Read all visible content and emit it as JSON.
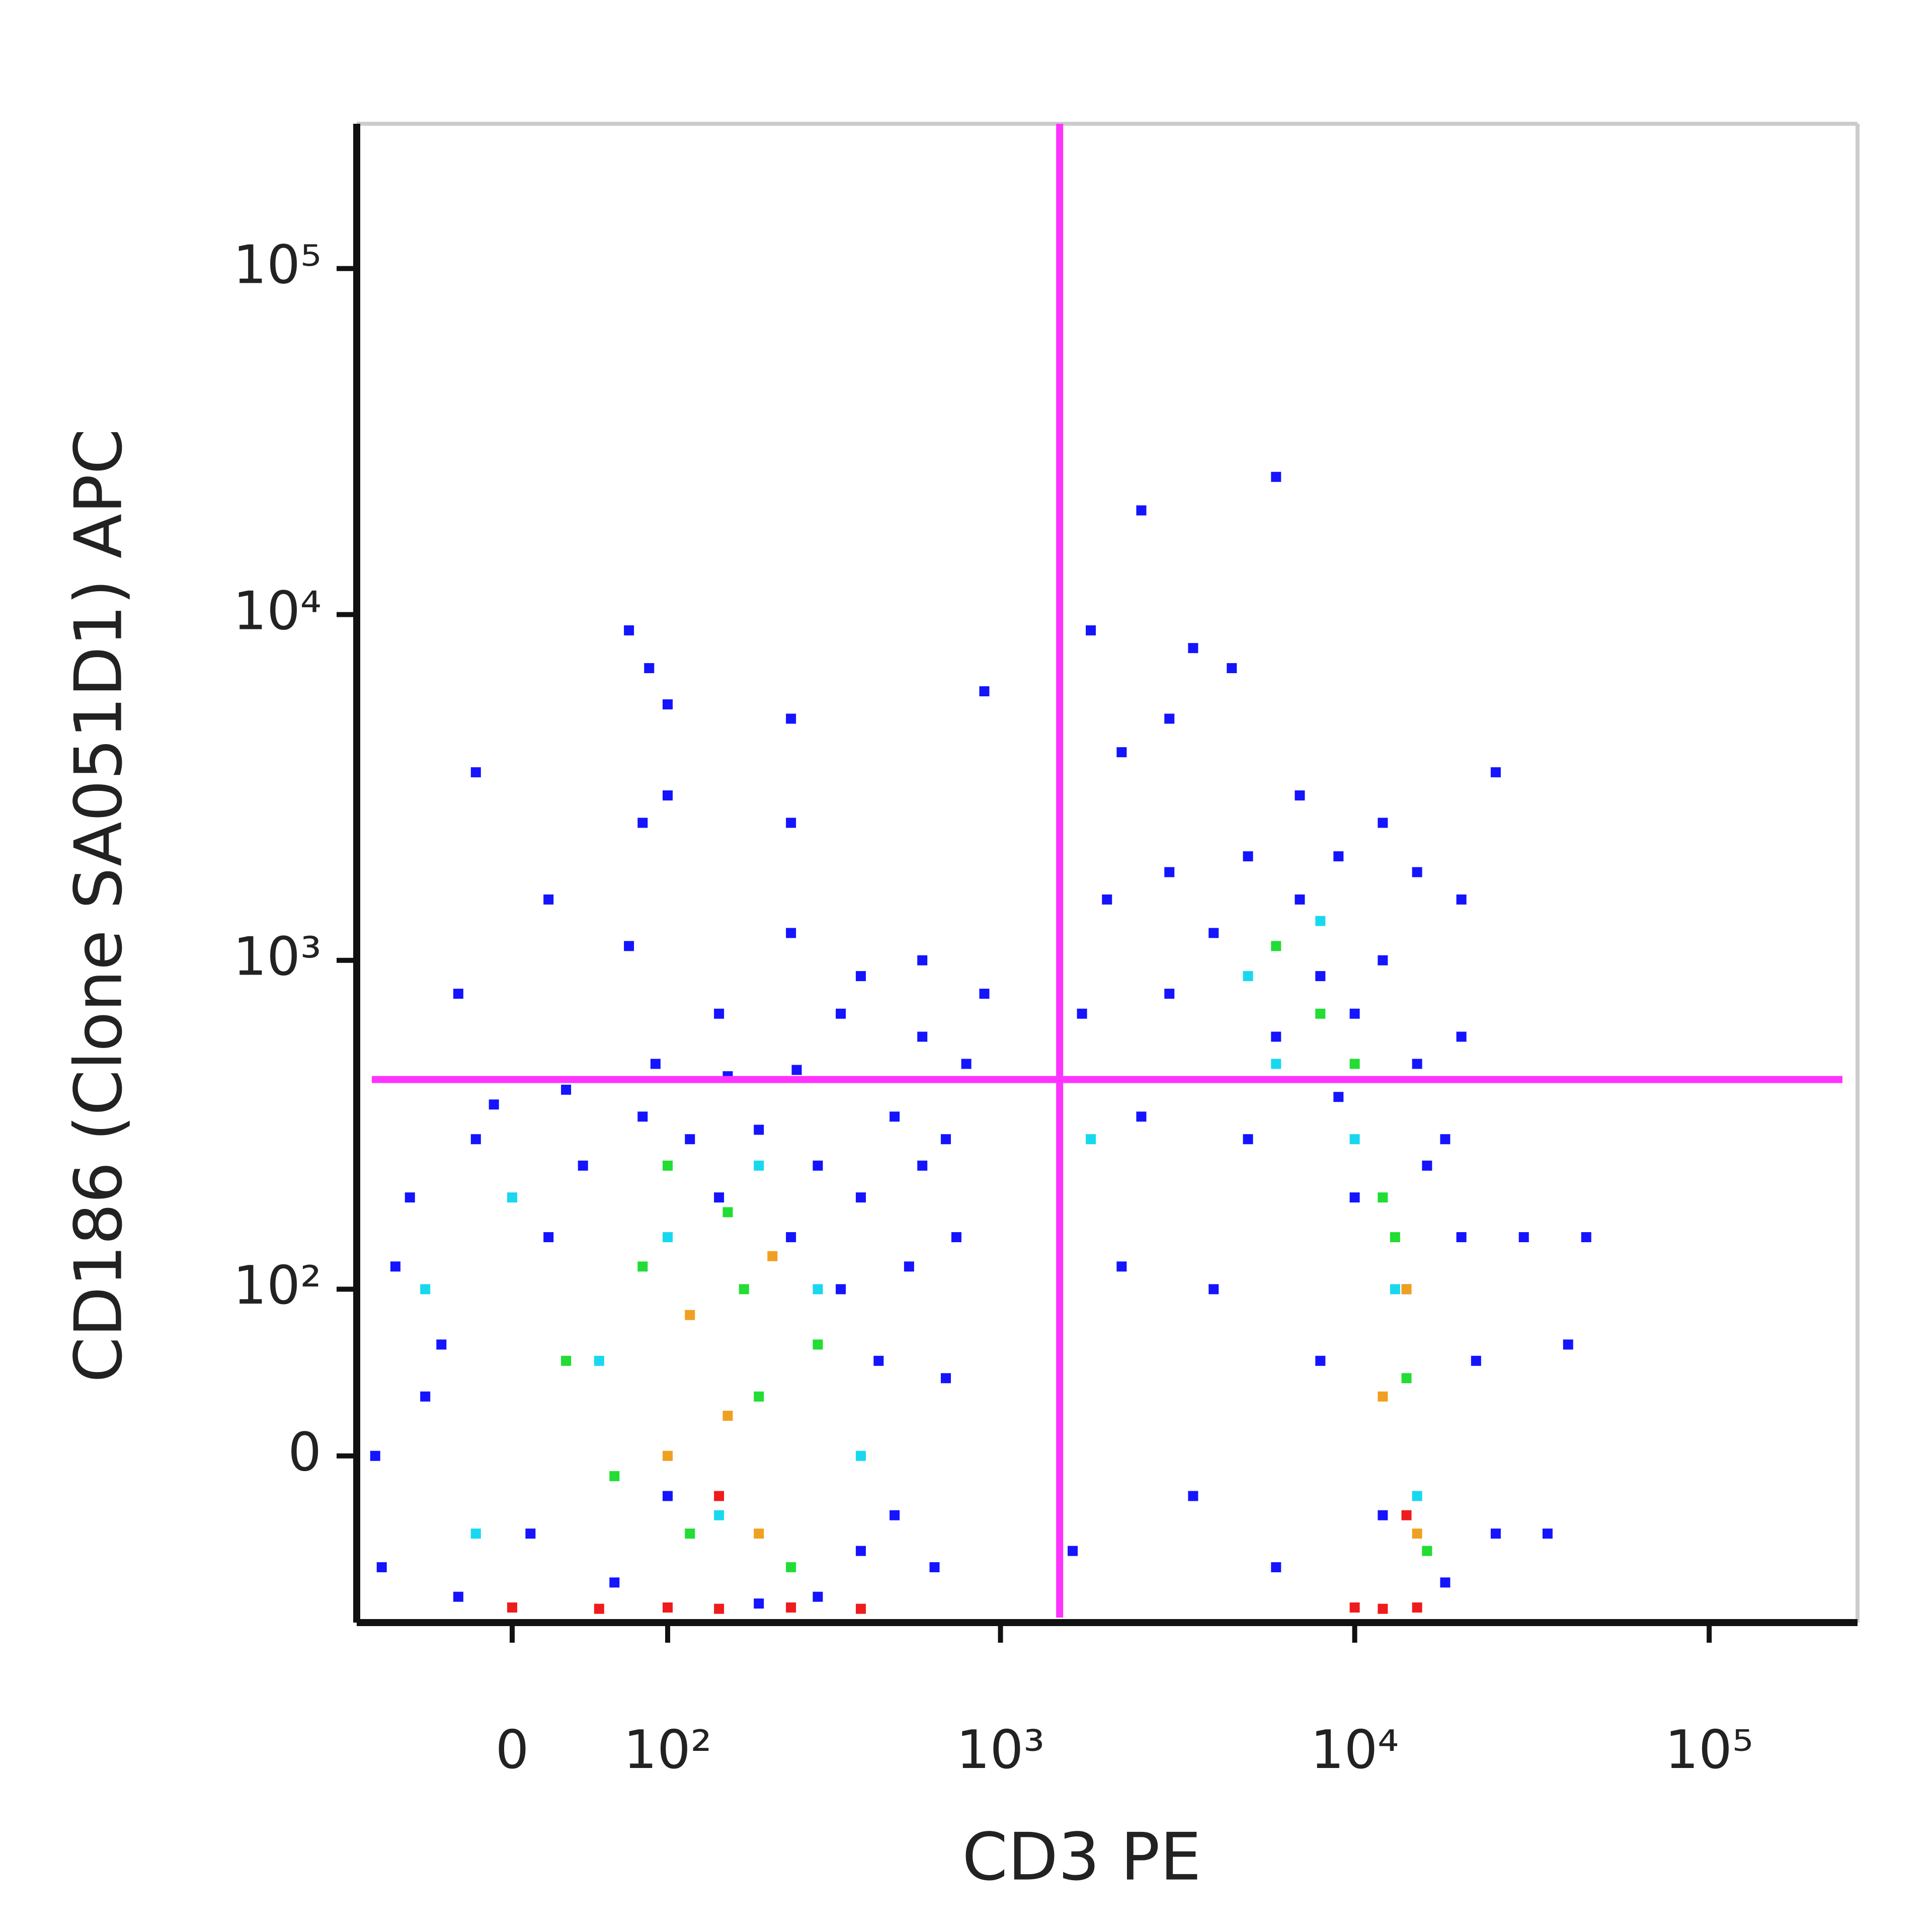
{
  "chart_data": {
    "type": "scatter",
    "xlabel": "CD3 PE",
    "ylabel": "CD186 (Clone SA051D1) APC",
    "xscale": "biexponential",
    "yscale": "biexponential",
    "xlim": [
      -100,
      262144
    ],
    "ylim": [
      -100,
      262144
    ],
    "xticks": [
      0,
      {
        "value": 100,
        "label": "10²"
      },
      {
        "value": 1000,
        "label": "10³"
      },
      {
        "value": 10000,
        "label": "10⁴"
      },
      {
        "value": 100000,
        "label": "10⁵"
      }
    ],
    "yticks": [
      0,
      {
        "value": 100,
        "label": "10²"
      },
      {
        "value": 1000,
        "label": "10³"
      },
      {
        "value": 10000,
        "label": "10⁴"
      },
      {
        "value": 100000,
        "label": "10⁵"
      }
    ],
    "gates": {
      "x": 1470,
      "y": 450,
      "color": "#ff33ff"
    },
    "series": [
      {
        "color": "#1414ff",
        "x": [
          -80,
          -60,
          -50,
          -30,
          -70,
          -20,
          10,
          20,
          -40,
          40,
          60,
          80,
          120,
          150,
          200,
          250,
          300,
          350,
          400,
          450,
          500,
          550,
          600,
          650,
          700,
          300,
          400,
          200,
          100,
          -85,
          -10,
          30,
          90,
          160,
          260,
          600,
          800,
          70,
          20,
          100,
          80,
          -20,
          100,
          70,
          85,
          250,
          250,
          250,
          400,
          600,
          900,
          900,
          -30,
          150,
          350,
          500,
          700,
          750,
          3000,
          4000,
          5000,
          6000,
          7000,
          8000,
          9000,
          10000,
          12000,
          15000,
          18000,
          20000,
          22000,
          25000,
          5000,
          4000,
          3500,
          6000,
          8000,
          10000,
          12000,
          14000,
          16000,
          18000,
          3000,
          2500,
          6000,
          3500,
          4500,
          1800,
          2200,
          7000,
          9000,
          12000,
          15000,
          25000,
          20000,
          2000,
          1700,
          2500,
          2200,
          1600,
          30000,
          40000,
          45000,
          35000,
          20000,
          3000
        ],
        "y": [
          -60,
          200,
          30,
          -80,
          120,
          300,
          -40,
          150,
          60,
          250,
          -70,
          350,
          300,
          200,
          320,
          150,
          250,
          100,
          200,
          50,
          -30,
          120,
          250,
          -60,
          40,
          -80,
          -50,
          -85,
          -20,
          0,
          380,
          420,
          500,
          460,
          480,
          600,
          500,
          1100,
          1500,
          3000,
          2500,
          3500,
          5500,
          9000,
          7000,
          5000,
          2500,
          1200,
          900,
          1000,
          800,
          6000,
          800,
          700,
          700,
          350,
          300,
          150,
          800,
          1200,
          2000,
          600,
          1500,
          900,
          400,
          700,
          1000,
          500,
          300,
          150,
          50,
          -40,
          300,
          100,
          -20,
          -60,
          50,
          200,
          -30,
          100,
          250,
          -70,
          5000,
          20000,
          25000,
          8000,
          7000,
          9000,
          4000,
          3000,
          2000,
          2500,
          1800,
          3500,
          1500,
          1500,
          700,
          350,
          120,
          -50,
          150,
          60,
          150,
          -40,
          600,
          1800
        ]
      },
      {
        "color": "#18d8f0",
        "x": [
          -50,
          0,
          50,
          100,
          150,
          200,
          300,
          -20,
          400,
          5000,
          8000,
          10000,
          13000,
          15000,
          6000,
          1800
        ],
        "y": [
          100,
          200,
          50,
          150,
          -30,
          250,
          100,
          -40,
          0,
          900,
          1300,
          300,
          100,
          -20,
          500,
          300
        ]
      },
      {
        "color": "#22dd33",
        "x": [
          30,
          80,
          120,
          160,
          200,
          250,
          100,
          300,
          60,
          180,
          6000,
          8000,
          12000,
          14000,
          16000,
          13000,
          10000
        ],
        "y": [
          50,
          120,
          -40,
          180,
          30,
          -60,
          250,
          60,
          -10,
          100,
          1100,
          700,
          200,
          40,
          -50,
          150,
          500
        ]
      },
      {
        "color": "#f0a020",
        "x": [
          120,
          160,
          200,
          100,
          220,
          14000,
          15000,
          12000
        ],
        "y": [
          80,
          20,
          -40,
          0,
          130,
          100,
          -40,
          30
        ]
      },
      {
        "color": "#ee1c1c",
        "x": [
          0,
          50,
          100,
          150,
          250,
          400,
          10000,
          12000,
          15000,
          150,
          14000
        ],
        "y": [
          -88,
          -89,
          -88,
          -89,
          -88,
          -89,
          -88,
          -89,
          -88,
          -20,
          -30
        ]
      }
    ]
  }
}
